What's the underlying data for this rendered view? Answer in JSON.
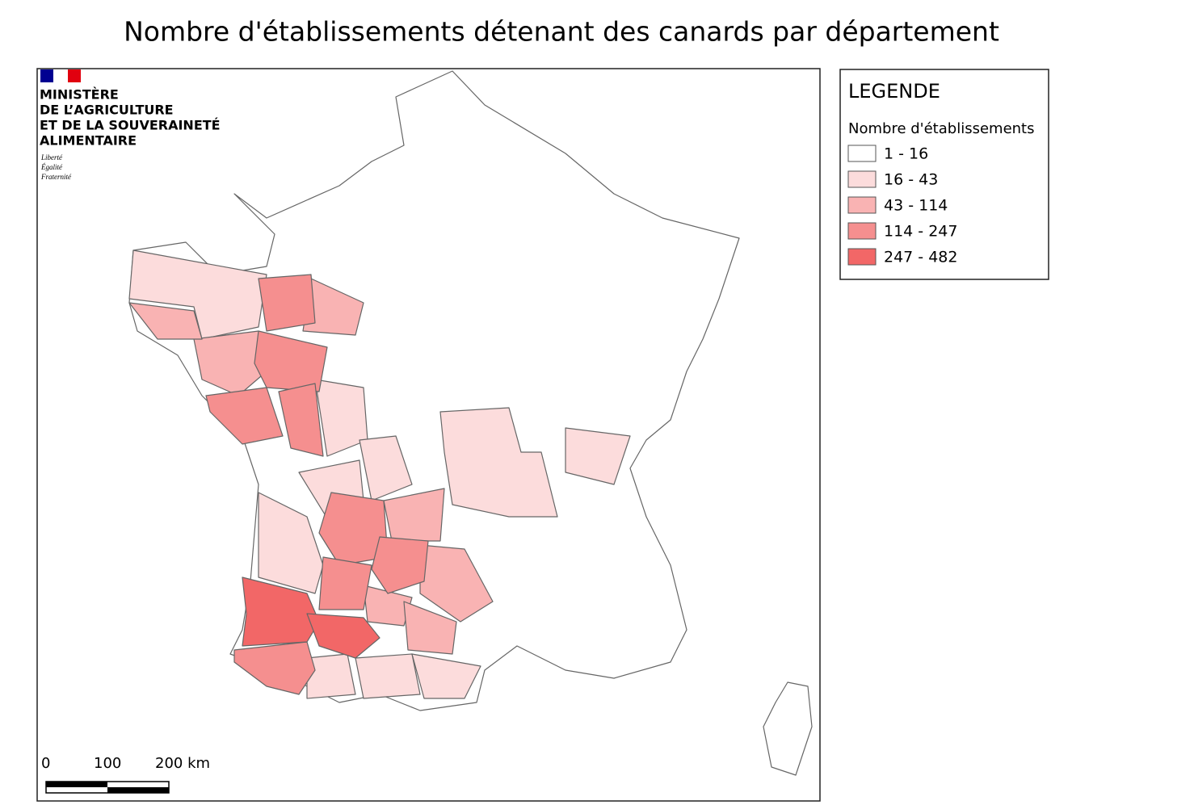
{
  "header": {
    "title": "Nombre d'établissements détenant des canards par département"
  },
  "logo": {
    "lines": [
      "MINISTÈRE",
      "DE L’AGRICULTURE",
      "ET DE LA SOUVERAINETÉ",
      "ALIMENTAIRE"
    ],
    "motto": [
      "Liberté",
      "Égalité",
      "Fraternité"
    ]
  },
  "legend": {
    "title": "LEGENDE",
    "subtitle": "Nombre d'établissements",
    "classes": [
      {
        "label": "1 - 16",
        "color": "#ffffff"
      },
      {
        "label": "16 - 43",
        "color": "#fcdcdc"
      },
      {
        "label": "43 - 114",
        "color": "#f9b3b3"
      },
      {
        "label": "114 - 247",
        "color": "#f58f8f"
      },
      {
        "label": "247 - 482",
        "color": "#f26767"
      }
    ]
  },
  "scale_bar": {
    "labels": [
      "0",
      "100",
      "200 km"
    ]
  }
}
